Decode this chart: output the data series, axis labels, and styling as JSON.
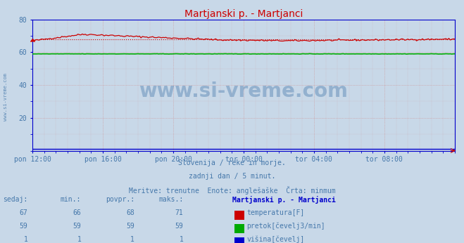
{
  "title": "Martjanski p. - Martjanci",
  "title_color": "#cc0000",
  "bg_color": "#c8d8e8",
  "plot_bg_color": "#c8d8e8",
  "figsize": [
    6.59,
    3.46
  ],
  "dpi": 100,
  "xlim": [
    0,
    288
  ],
  "ylim": [
    0,
    80
  ],
  "yticks": [
    20,
    40,
    60,
    80
  ],
  "xtick_labels": [
    "pon 12:00",
    "pon 16:00",
    "pon 20:00",
    "tor 00:00",
    "tor 04:00",
    "tor 08:00"
  ],
  "xtick_positions": [
    0,
    48,
    96,
    144,
    192,
    240
  ],
  "grid_color": "#d09090",
  "temp_color": "#cc0000",
  "temp_avg_value": 68,
  "flow_color": "#00aa00",
  "flow_value": 59,
  "height_color": "#0000cc",
  "height_value": 1,
  "axis_color": "#0000cc",
  "tick_color": "#4477aa",
  "watermark_text": "www.si-vreme.com",
  "watermark_color": "#4477aa",
  "watermark_alpha": 0.4,
  "subtitle_lines": [
    "Slovenija / reke in morje.",
    "zadnji dan / 5 minut.",
    "Meritve: trenutne  Enote: anglešaške  Črta: minmum"
  ],
  "subtitle_color": "#4477aa",
  "table_header": [
    "sedaj:",
    "min.:",
    "povpr.:",
    "maks.:",
    "Martjanski p. - Martjanci"
  ],
  "table_rows": [
    [
      67,
      66,
      68,
      71,
      "temperatura[F]",
      "#cc0000"
    ],
    [
      59,
      59,
      59,
      59,
      "pretok[čevelj3/min]",
      "#00aa00"
    ],
    [
      1,
      1,
      1,
      1,
      "višina[čevelj]",
      "#0000cc"
    ]
  ],
  "table_color": "#4477aa",
  "table_bold_color": "#0000cc"
}
